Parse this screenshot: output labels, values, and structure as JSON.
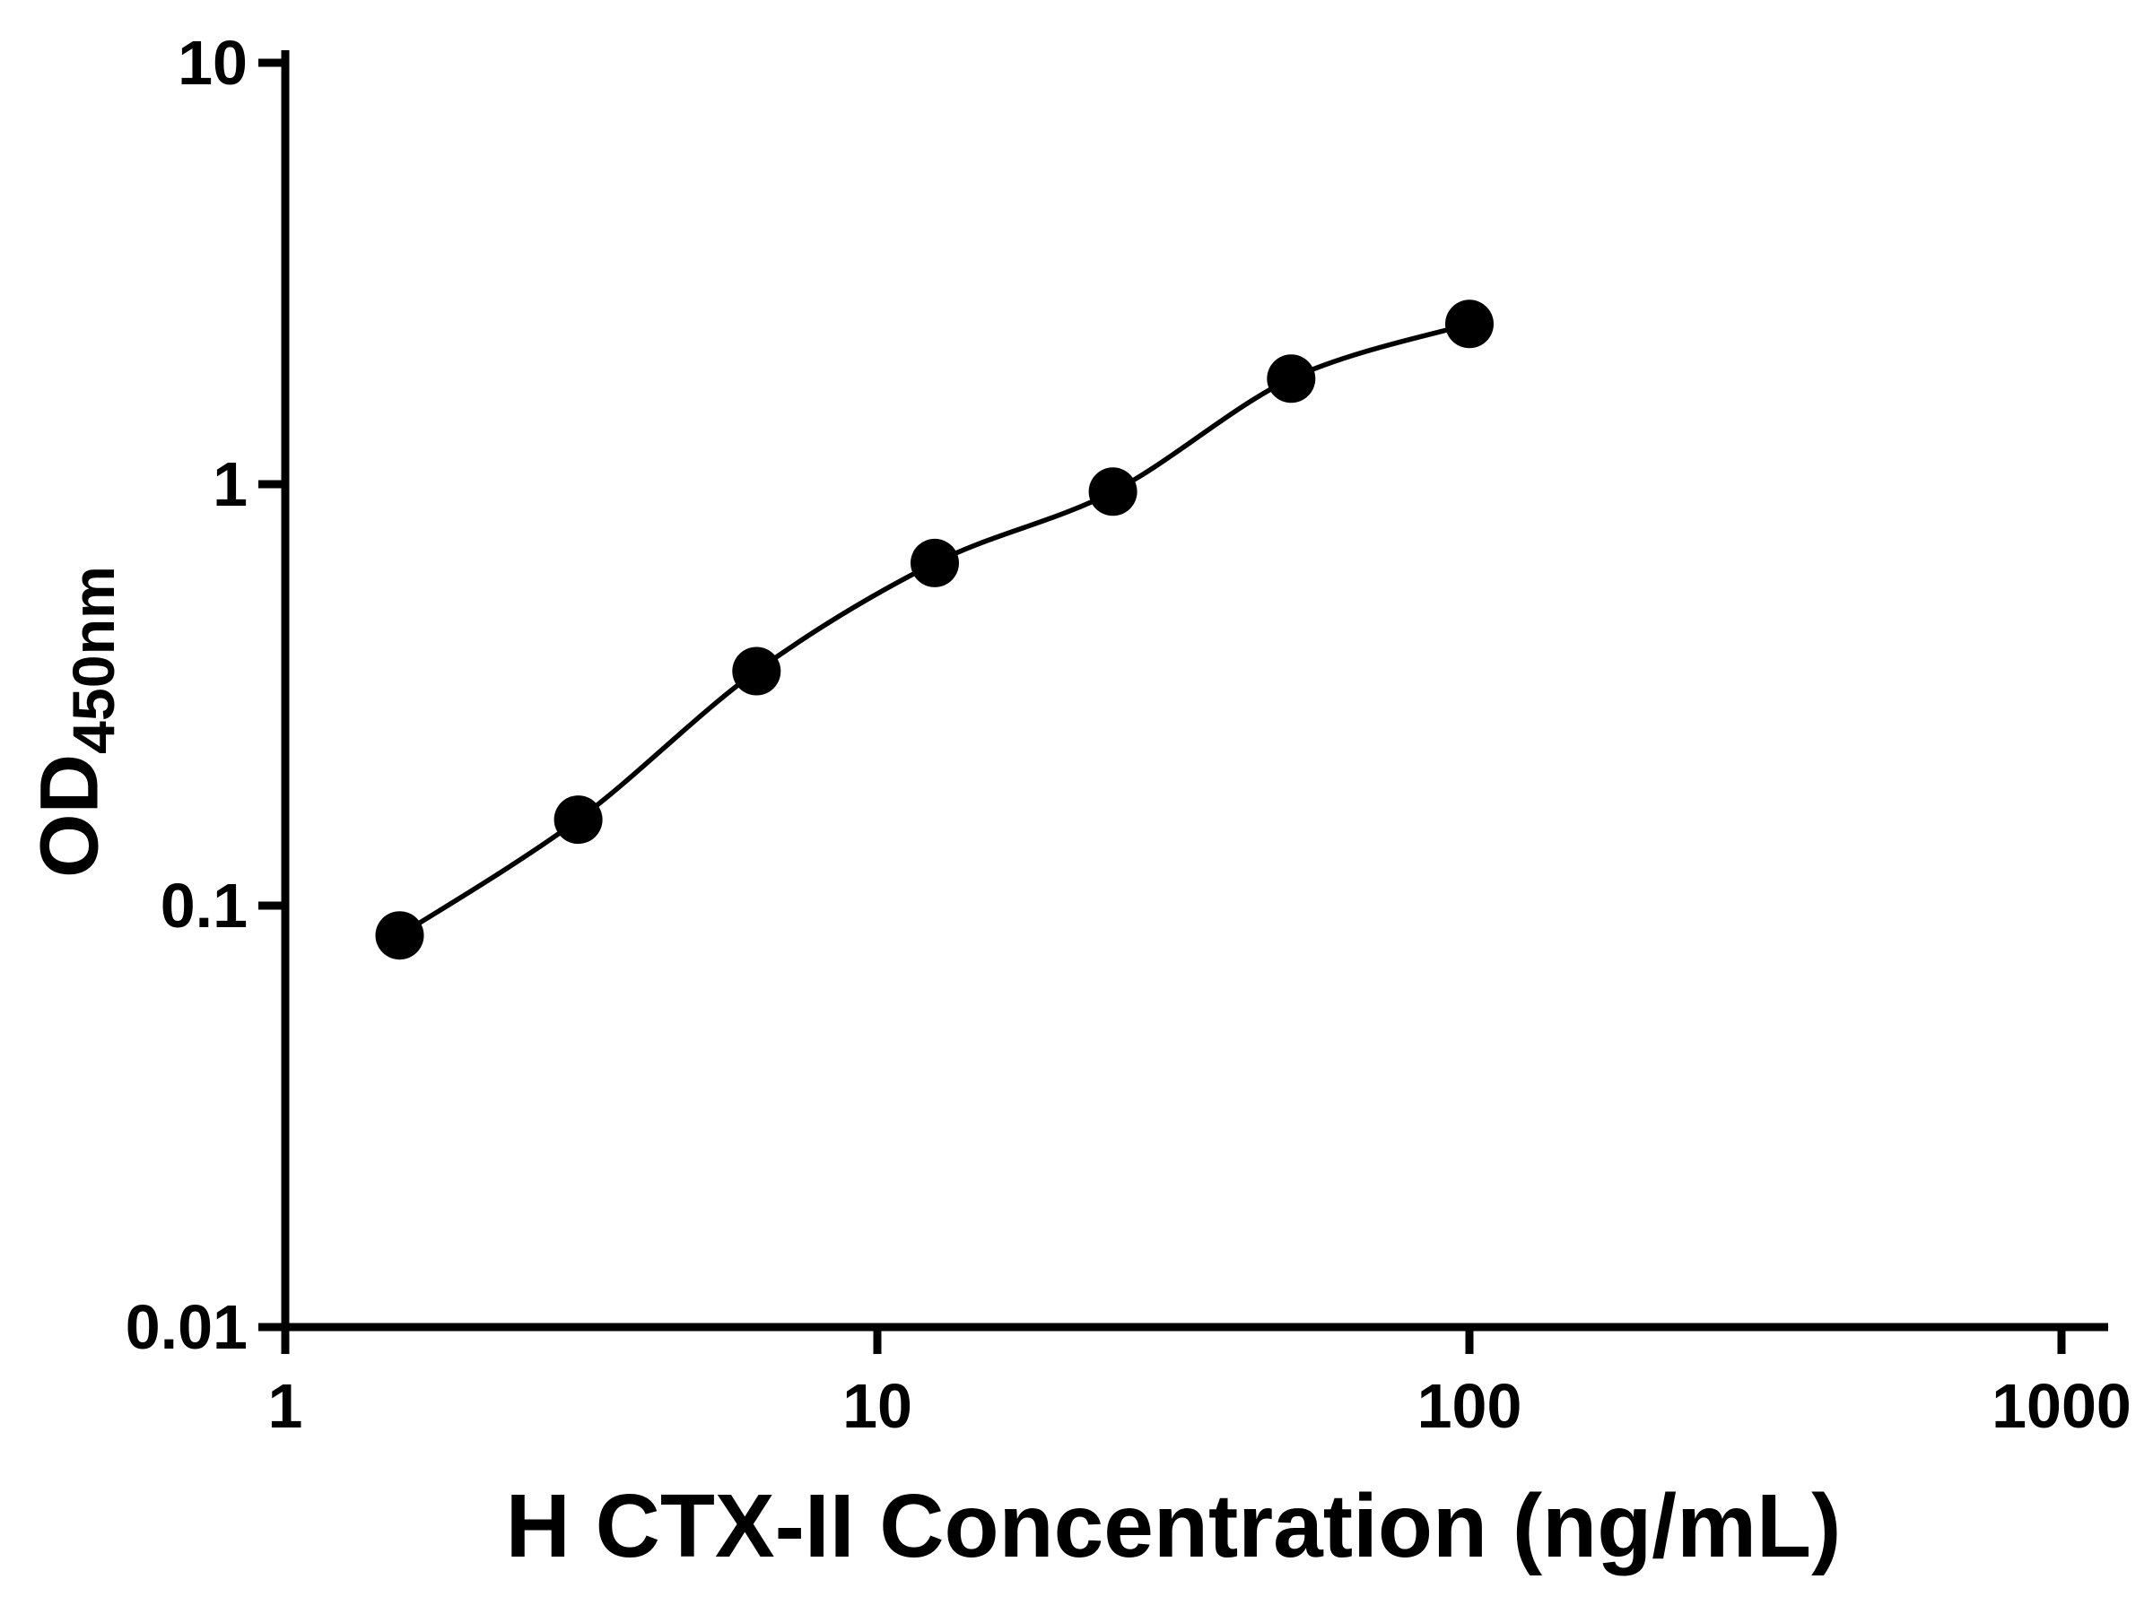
{
  "figure": {
    "background": "#ffffff",
    "text_color": "#000000"
  },
  "chart_data": {
    "type": "scatter",
    "title": "",
    "xlabel": "H CTX-II Concentration (ng/mL)",
    "ylabel": "OD450nm",
    "ylabel_main": "OD",
    "ylabel_sub": "450nm",
    "xscale": "log",
    "yscale": "log",
    "xlim": [
      1,
      1000
    ],
    "ylim": [
      0.01,
      10
    ],
    "x_ticks": [
      1,
      10,
      100,
      1000
    ],
    "x_tick_labels": [
      "1",
      "10",
      "100",
      "1000"
    ],
    "y_ticks": [
      0.01,
      0.1,
      1,
      10
    ],
    "y_tick_labels": [
      "0.01",
      "0.1",
      "1",
      "10"
    ],
    "grid": false,
    "legend": false,
    "series": [
      {
        "x": [
          1.56,
          3.125,
          6.25,
          12.5,
          25,
          50,
          100
        ],
        "y": [
          0.085,
          0.16,
          0.36,
          0.65,
          0.96,
          1.78,
          2.4
        ],
        "marker": "filled-circle",
        "marker_color": "#000000",
        "line_color": "#000000",
        "has_fit_curve": true
      }
    ]
  }
}
